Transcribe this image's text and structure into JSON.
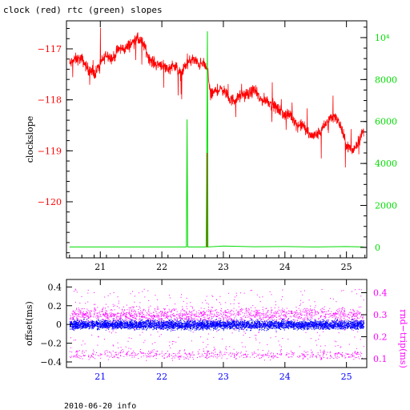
{
  "figure_title": "clock (red) rtc (green) slopes",
  "footer": "2010-06-20 info",
  "colors": {
    "frame": "#000000",
    "red": "#ff0000",
    "green": "#00dd00",
    "olive": "#806600",
    "blue": "#0000ff",
    "magenta": "#ff00ff"
  },
  "chart_data": [
    {
      "type": "line",
      "xlabel": "",
      "ylabel": "clockslope",
      "ylabel_right": "",
      "xlim": [
        20.45,
        25.33
      ],
      "ylim": [
        -121.1,
        -116.45
      ],
      "ylim_right": [
        -500,
        10800
      ],
      "xticks": [
        21,
        22,
        23,
        24,
        25
      ],
      "xtick_labels": [
        "21",
        "22",
        "23",
        "24",
        "25"
      ],
      "yticks": [
        -117,
        -118,
        -119,
        -120
      ],
      "ytick_labels": [
        "−117",
        "−118",
        "−119",
        "−120"
      ],
      "yticks_right": [
        0,
        2000,
        4000,
        6000,
        8000,
        10000
      ],
      "ytick_labels_right": [
        "0",
        "2000",
        "4000",
        "6000",
        "8000",
        "10⁴"
      ],
      "series": [
        {
          "color": "red",
          "axis": "left",
          "x": [
            20.5,
            20.6,
            20.7,
            20.8,
            20.9,
            21.0,
            21.1,
            21.2,
            21.3,
            21.4,
            21.5,
            21.6,
            21.7,
            21.8,
            21.9,
            22.0,
            22.1,
            22.2,
            22.3,
            22.4,
            22.5,
            22.6,
            22.7,
            22.75,
            22.8,
            22.9,
            23.0,
            23.1,
            23.2,
            23.3,
            23.4,
            23.5,
            23.6,
            23.7,
            23.8,
            23.9,
            24.0,
            24.1,
            24.2,
            24.3,
            24.4,
            24.5,
            24.6,
            24.7,
            24.8,
            24.9,
            25.0,
            25.1,
            25.2,
            25.28
          ],
          "y": [
            -117.3,
            -117.2,
            -117.2,
            -117.4,
            -117.5,
            -117.3,
            -117.1,
            -117.2,
            -117.0,
            -117.0,
            -116.9,
            -116.8,
            -116.9,
            -117.2,
            -117.3,
            -117.3,
            -117.4,
            -117.3,
            -117.5,
            -117.3,
            -117.2,
            -117.3,
            -117.3,
            -117.5,
            -117.9,
            -117.8,
            -117.8,
            -118.0,
            -118.0,
            -117.9,
            -117.9,
            -117.8,
            -118.0,
            -118.0,
            -118.1,
            -118.2,
            -118.3,
            -118.3,
            -118.5,
            -118.5,
            -118.7,
            -118.7,
            -118.6,
            -118.4,
            -118.3,
            -118.5,
            -118.9,
            -119.0,
            -118.8,
            -118.6
          ]
        },
        {
          "color": "green",
          "axis": "right",
          "x": [
            20.5,
            22.4,
            22.41,
            22.42,
            22.43,
            22.72,
            22.73,
            22.74,
            22.75,
            23.0,
            23.5,
            24.0,
            24.5,
            25.0,
            25.28
          ],
          "y": [
            20,
            20,
            6100,
            20,
            20,
            20,
            4100,
            10300,
            20,
            60,
            30,
            40,
            20,
            40,
            20
          ]
        },
        {
          "color": "olive",
          "axis": "right",
          "x": [
            22.735,
            22.735
          ],
          "y": [
            0,
            4500
          ]
        }
      ]
    },
    {
      "type": "scatter",
      "xlabel": "",
      "ylabel": "offset(ms)",
      "ylabel_right": "rnd−trip(ms)",
      "xlim": [
        20.45,
        25.33
      ],
      "ylim": [
        -0.46,
        0.48
      ],
      "ylim_right": [
        0.06,
        0.46
      ],
      "xticks": [
        21,
        22,
        23,
        24,
        25
      ],
      "xtick_labels": [
        "21",
        "22",
        "23",
        "24",
        "25"
      ],
      "yticks": [
        0.4,
        0.2,
        0,
        -0.2,
        -0.4
      ],
      "ytick_labels": [
        "0.4",
        "0.2",
        "0",
        "−0.2",
        "−0.4"
      ],
      "yticks_right": [
        0.4,
        0.3,
        0.2,
        0.1
      ],
      "ytick_labels_right": [
        "0.4",
        "0.3",
        "0.2",
        "0.1"
      ],
      "series": [
        {
          "color": "blue",
          "axis": "left",
          "x_range": [
            20.5,
            25.28
          ],
          "y_center": 0.0,
          "y_spread": 0.07
        },
        {
          "color": "magenta",
          "axis": "right",
          "x_range": [
            20.5,
            25.28
          ],
          "y_band_high": 0.3,
          "y_band_low": 0.12,
          "y_spread": 0.06
        }
      ]
    }
  ]
}
